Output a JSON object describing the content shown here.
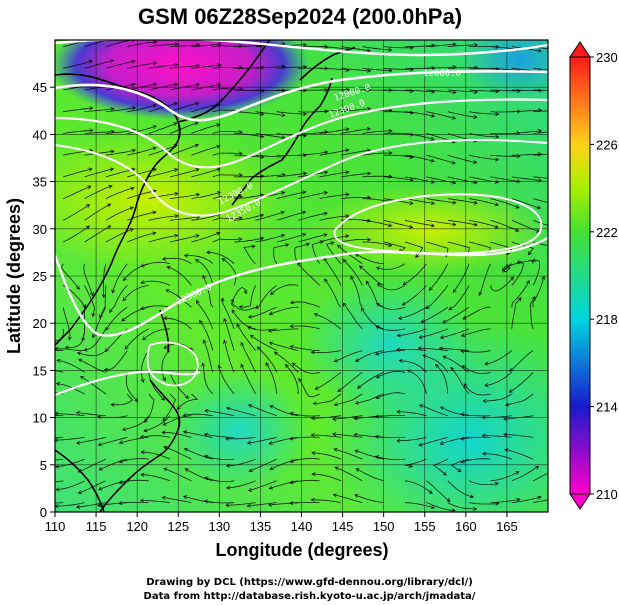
{
  "title": "GSM 06Z28Sep2024 (200.0hPa)",
  "xlabel": "Longitude (degrees)",
  "ylabel": "Latitude  (degrees)",
  "x_ticks": [
    "110",
    "115",
    "120",
    "125",
    "130",
    "135",
    "140",
    "145",
    "150",
    "155",
    "160",
    "165"
  ],
  "y_ticks": [
    "0",
    "5",
    "10",
    "15",
    "20",
    "25",
    "30",
    "35",
    "40",
    "45"
  ],
  "colorbar_ticks": [
    "230",
    "226",
    "222",
    "218",
    "214",
    "210"
  ],
  "contour_labels": [
    "12000.0",
    "12000.0",
    "12300.0",
    "12300.0",
    "12350.0",
    "12300.0"
  ],
  "footer": {
    "line1": "Drawing by DCL (https://www.gfd-dennou.org/library/dcl/)",
    "line2": "Data from http://database.rish.kyoto-u.ac.jp/arch/jmadata/"
  },
  "chart_data": {
    "type": "heatmap",
    "title": "GSM 06Z28Sep2024 (200.0hPa)",
    "xlabel": "Longitude (degrees)",
    "ylabel": "Latitude  (degrees)",
    "xlim": [
      110,
      170
    ],
    "ylim": [
      0,
      50
    ],
    "colorbar": {
      "min": 210,
      "max": 230,
      "ticks": [
        210,
        214,
        218,
        222,
        226,
        230
      ]
    },
    "colors": [
      "#ff00cc",
      "#1a1acc",
      "#00d5e0",
      "#44e033",
      "#a8f000",
      "#ffd21a",
      "#ff1a1a"
    ],
    "overlays": [
      "streamlines",
      "geopotential height contours (white)",
      "coastlines",
      "lat/lon grid"
    ]
  }
}
